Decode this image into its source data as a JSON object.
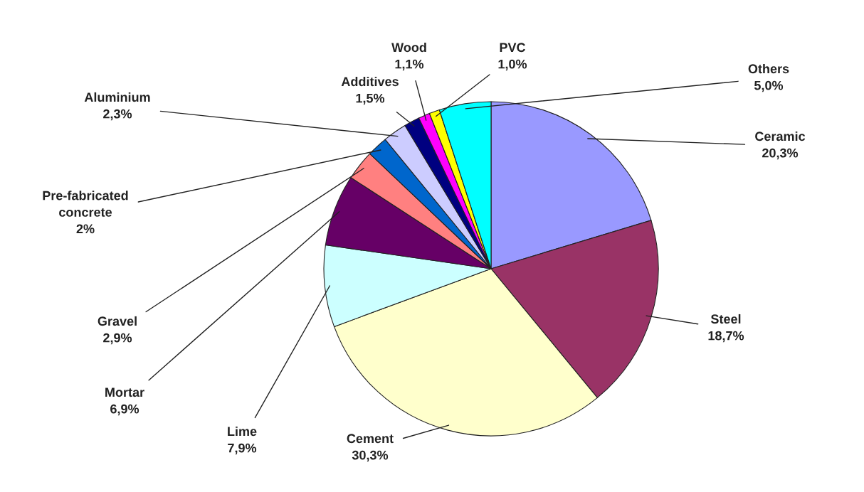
{
  "chart_data": {
    "type": "pie",
    "categories": [
      "Ceramic",
      "Steel",
      "Cement",
      "Lime",
      "Mortar",
      "Gravel",
      "Pre-fabricated concrete",
      "Aluminium",
      "Additives",
      "Wood",
      "PVC",
      "Others"
    ],
    "values": [
      20.3,
      18.7,
      30.3,
      7.9,
      6.9,
      2.9,
      2,
      2.3,
      1.5,
      1.1,
      1.0,
      5.0
    ],
    "value_labels": [
      "20,3%",
      "18,7%",
      "30,3%",
      "7,9%",
      "6,9%",
      "2,9%",
      "2%",
      "2,3%",
      "1,5%",
      "1,1%",
      "1,0%",
      "5,0%"
    ],
    "colors": [
      "#9999ff",
      "#993366",
      "#ffffcc",
      "#ccffff",
      "#660066",
      "#ff8080",
      "#0066cc",
      "#ccccff",
      "#000080",
      "#ff00ff",
      "#ffff00",
      "#00ffff"
    ]
  }
}
